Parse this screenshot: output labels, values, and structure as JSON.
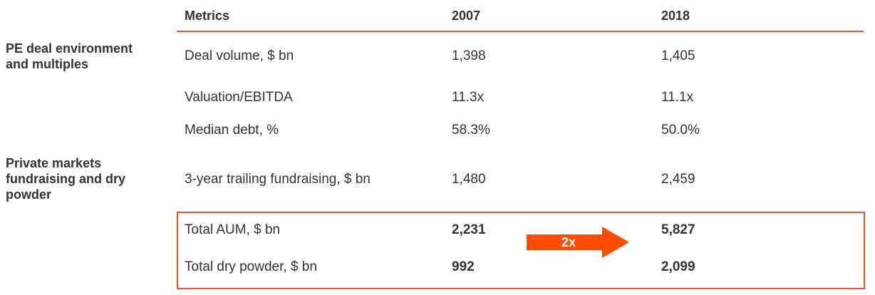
{
  "header": {
    "metrics": "Metrics",
    "col_2007": "2007",
    "col_2018": "2018"
  },
  "categories": {
    "pe_deal": [
      "PE deal environment",
      "and multiples"
    ],
    "private_markets": [
      "Private markets",
      "fundraising and dry",
      "powder"
    ]
  },
  "rows": [
    {
      "metric": "Deal volume, $ bn",
      "v2007": "1,398",
      "v2018": "1,405"
    },
    {
      "metric": "Valuation/EBITDA",
      "v2007": "11.3x",
      "v2018": "11.1x"
    },
    {
      "metric": "Median debt, %",
      "v2007": "58.3%",
      "v2018": "50.0%"
    },
    {
      "metric": "3-year trailing fundraising, $ bn",
      "v2007": "1,480",
      "v2018": "2,459"
    },
    {
      "metric": "Total AUM, $ bn",
      "v2007": "2,231",
      "v2018": "5,827"
    },
    {
      "metric": "Total dry powder, $ bn",
      "v2007": "992",
      "v2018": "2,099"
    }
  ],
  "growth_arrow": {
    "label": "2x"
  },
  "colors": {
    "accent": "#e8552a",
    "text": "#333333"
  }
}
